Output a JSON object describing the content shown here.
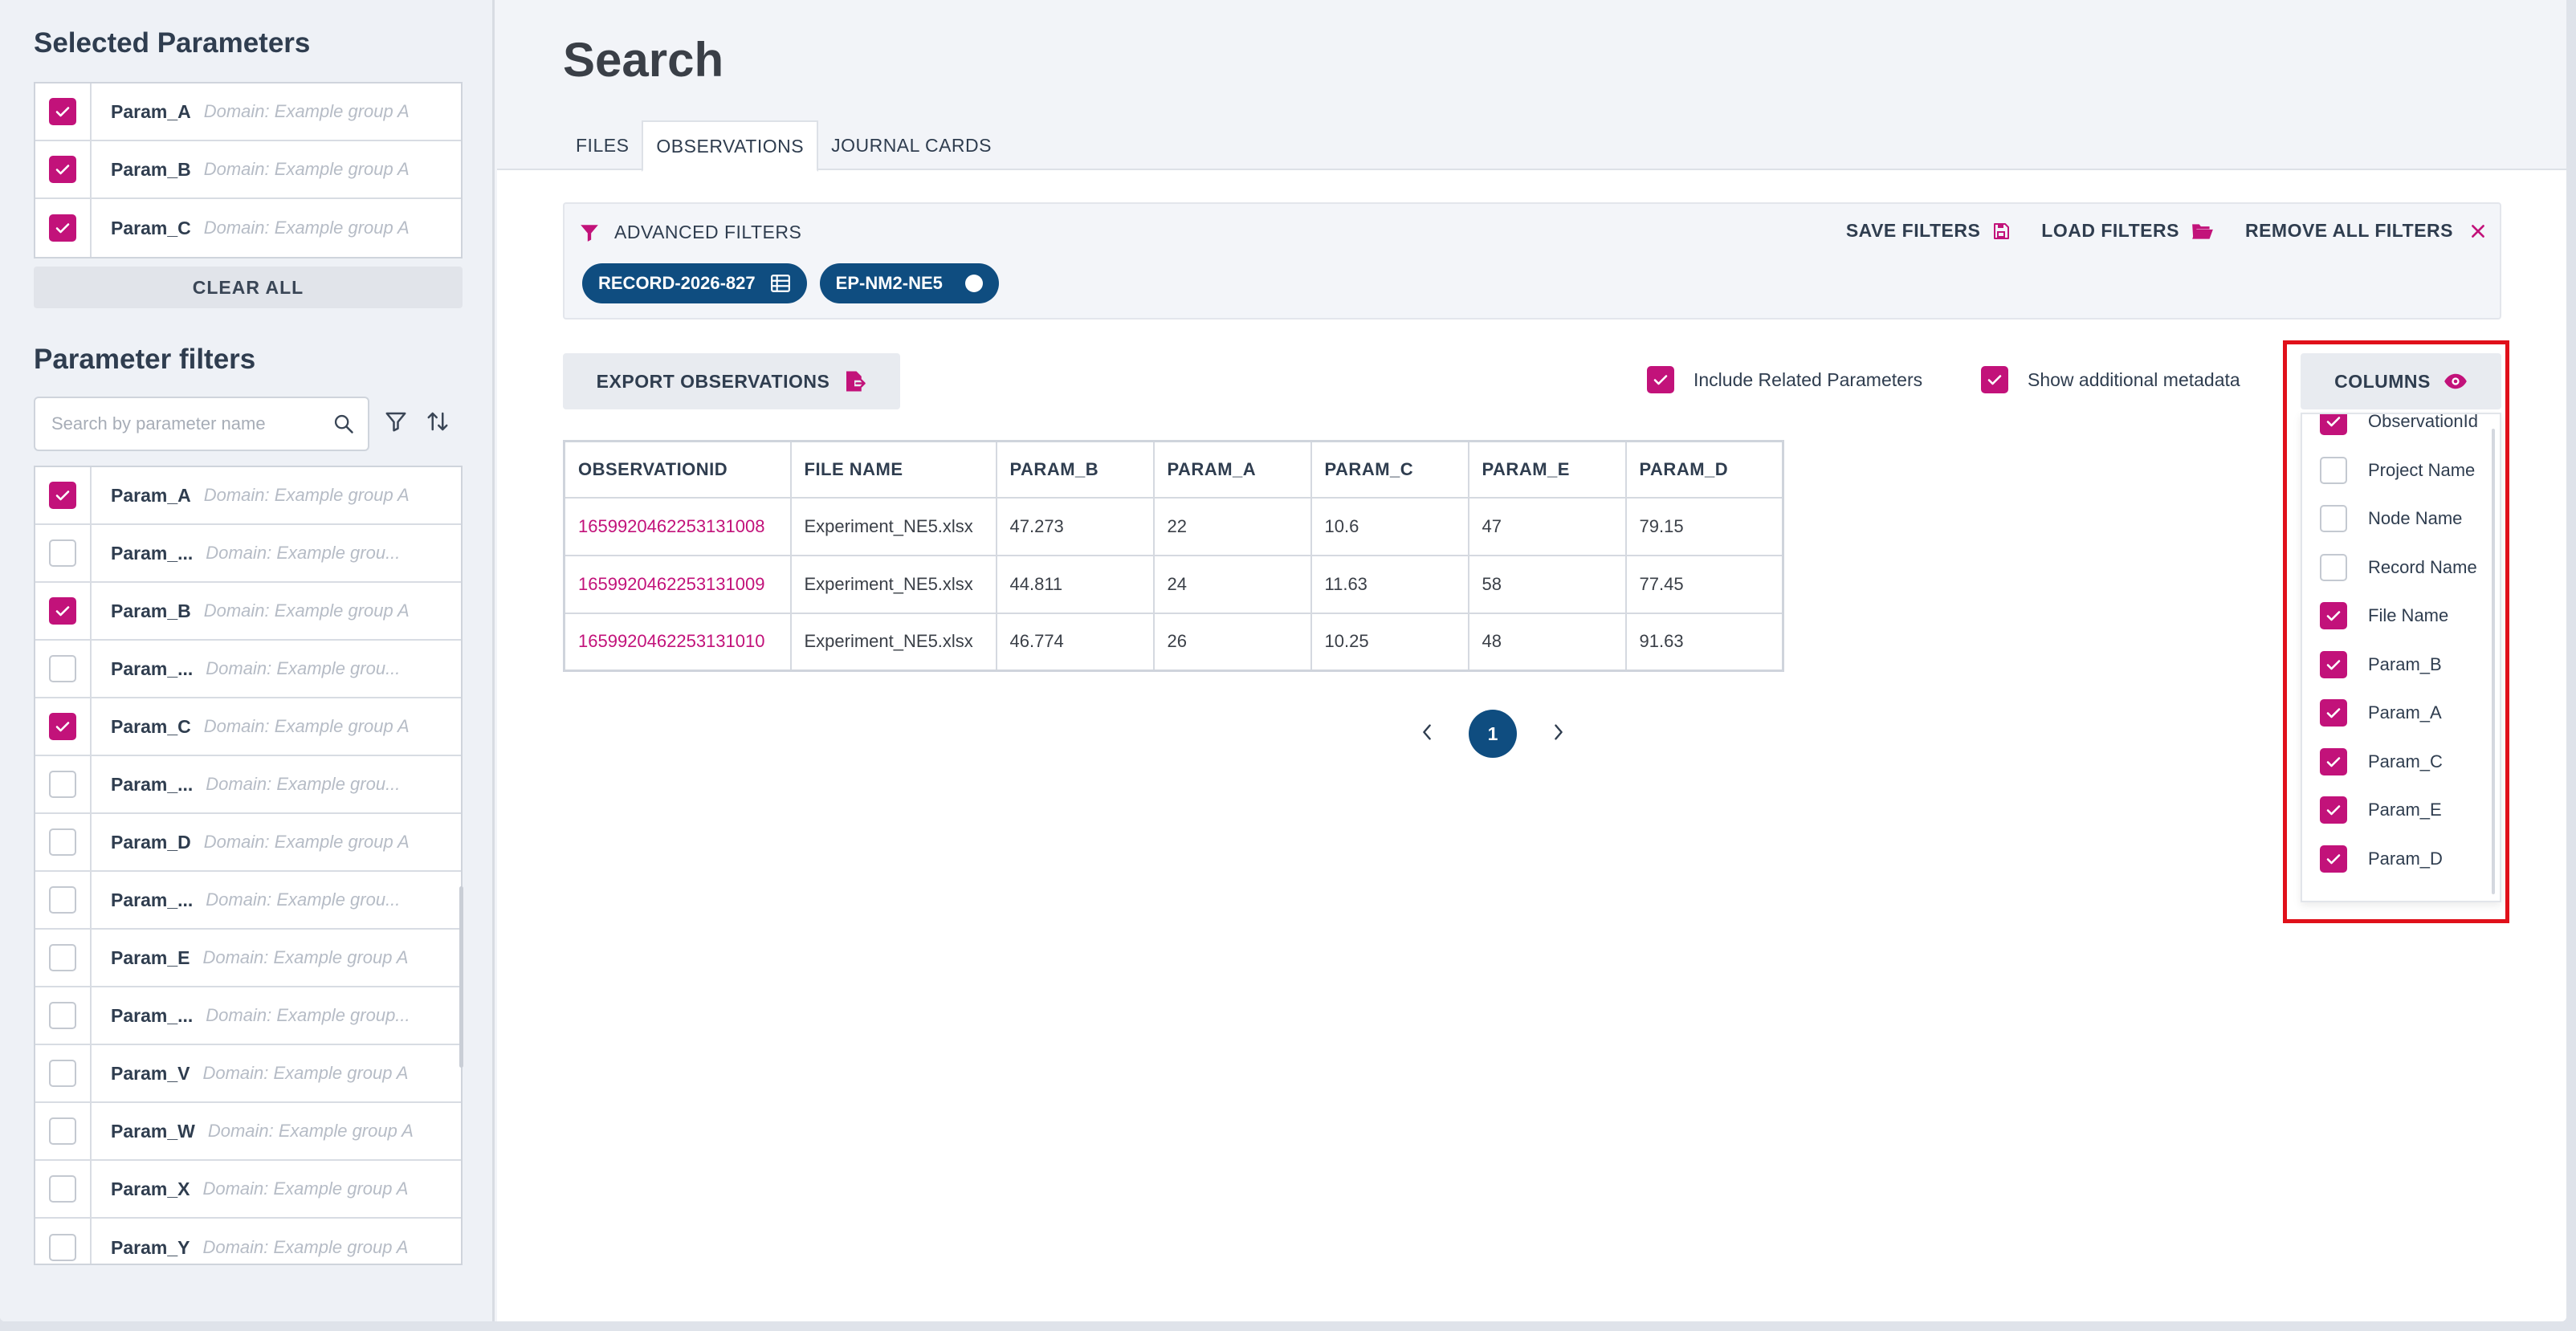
{
  "sidebar": {
    "selected_title": "Selected Parameters",
    "selected": [
      {
        "name": "Param_A",
        "domain": "Domain: Example group A",
        "checked": true
      },
      {
        "name": "Param_B",
        "domain": "Domain: Example group A",
        "checked": true
      },
      {
        "name": "Param_C",
        "domain": "Domain: Example group A",
        "checked": true
      }
    ],
    "clear_all": "CLEAR ALL",
    "filters_title": "Parameter filters",
    "search_placeholder": "Search by parameter name",
    "filters": [
      {
        "name": "Param_A",
        "domain": "Domain: Example group A",
        "checked": true
      },
      {
        "name": "Param_...",
        "domain": "Domain: Example grou...",
        "checked": false
      },
      {
        "name": "Param_B",
        "domain": "Domain: Example group A",
        "checked": true
      },
      {
        "name": "Param_...",
        "domain": "Domain: Example grou...",
        "checked": false
      },
      {
        "name": "Param_C",
        "domain": "Domain: Example group A",
        "checked": true
      },
      {
        "name": "Param_...",
        "domain": "Domain: Example grou...",
        "checked": false
      },
      {
        "name": "Param_D",
        "domain": "Domain: Example group A",
        "checked": false
      },
      {
        "name": "Param_...",
        "domain": "Domain: Example grou...",
        "checked": false
      },
      {
        "name": "Param_E",
        "domain": "Domain: Example group A",
        "checked": false
      },
      {
        "name": "Param_...",
        "domain": "Domain: Example group...",
        "checked": false
      },
      {
        "name": "Param_V",
        "domain": "Domain: Example group A",
        "checked": false
      },
      {
        "name": "Param_W",
        "domain": "Domain: Example group A",
        "checked": false
      },
      {
        "name": "Param_X",
        "domain": "Domain: Example group A",
        "checked": false
      },
      {
        "name": "Param_Y",
        "domain": "Domain: Example group A",
        "checked": false
      }
    ]
  },
  "main": {
    "title": "Search",
    "tabs": [
      {
        "label": "FILES",
        "active": false
      },
      {
        "label": "OBSERVATIONS",
        "active": true
      },
      {
        "label": "JOURNAL CARDS",
        "active": false
      }
    ],
    "advanced_filters": {
      "label": "ADVANCED FILTERS",
      "save": "SAVE FILTERS",
      "load": "LOAD FILTERS",
      "remove_all": "REMOVE ALL FILTERS",
      "chips": [
        "RECORD-2026-827",
        "EP-NM2-NE5"
      ]
    },
    "export_label": "EXPORT OBSERVATIONS",
    "include_related": {
      "label": "Include Related Parameters",
      "checked": true
    },
    "show_metadata": {
      "label": "Show additional metadata",
      "checked": true
    },
    "columns_label": "COLUMNS",
    "column_options": [
      {
        "label": "ObservationId",
        "checked": true
      },
      {
        "label": "Project Name",
        "checked": false
      },
      {
        "label": "Node Name",
        "checked": false
      },
      {
        "label": "Record Name",
        "checked": false
      },
      {
        "label": "File Name",
        "checked": true
      },
      {
        "label": "Param_B",
        "checked": true
      },
      {
        "label": "Param_A",
        "checked": true
      },
      {
        "label": "Param_C",
        "checked": true
      },
      {
        "label": "Param_E",
        "checked": true
      },
      {
        "label": "Param_D",
        "checked": true
      }
    ],
    "table": {
      "headers": [
        "OBSERVATIONID",
        "FILE NAME",
        "PARAM_B",
        "PARAM_A",
        "PARAM_C",
        "PARAM_E",
        "PARAM_D"
      ],
      "rows": [
        [
          "1659920462253131008",
          "Experiment_NE5.xlsx",
          "47.273",
          "22",
          "10.6",
          "47",
          "79.15"
        ],
        [
          "1659920462253131009",
          "Experiment_NE5.xlsx",
          "44.811",
          "24",
          "11.63",
          "58",
          "77.45"
        ],
        [
          "1659920462253131010",
          "Experiment_NE5.xlsx",
          "46.774",
          "26",
          "10.25",
          "48",
          "91.63"
        ]
      ]
    },
    "pagination": {
      "current": "1"
    }
  }
}
